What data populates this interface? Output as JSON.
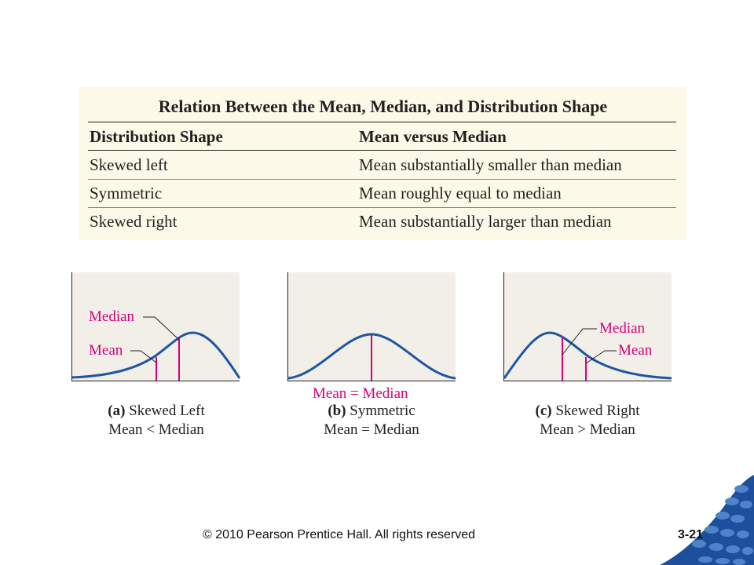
{
  "table": {
    "title": "Relation Between the Mean, Median, and Distribution Shape",
    "headers": [
      "Distribution Shape",
      "Mean versus Median"
    ],
    "rows": [
      [
        "Skewed left",
        "Mean substantially smaller than median"
      ],
      [
        "Symmetric",
        "Mean roughly equal to median"
      ],
      [
        "Skewed right",
        "Mean substantially larger than median"
      ]
    ]
  },
  "charts": {
    "left": {
      "label_median": "Median",
      "label_mean": "Mean",
      "caption_letter": "(a)",
      "caption_title": "Skewed Left",
      "caption_relation": "Mean < Median"
    },
    "middle": {
      "label_center": "Mean = Median",
      "caption_letter": "(b)",
      "caption_title": "Symmetric",
      "caption_relation": "Mean = Median"
    },
    "right": {
      "label_median": "Median",
      "label_mean": "Mean",
      "caption_letter": "(c)",
      "caption_title": "Skewed Right",
      "caption_relation": "Mean > Median"
    }
  },
  "colors": {
    "curve": "#1f56a3",
    "marker": "#d6007a",
    "plot_background": "#f2efe9",
    "table_background": "#fdf9e8"
  },
  "footer": {
    "copyright": "© 2010 Pearson Prentice Hall. All rights reserved",
    "slide_number": "3-21"
  }
}
